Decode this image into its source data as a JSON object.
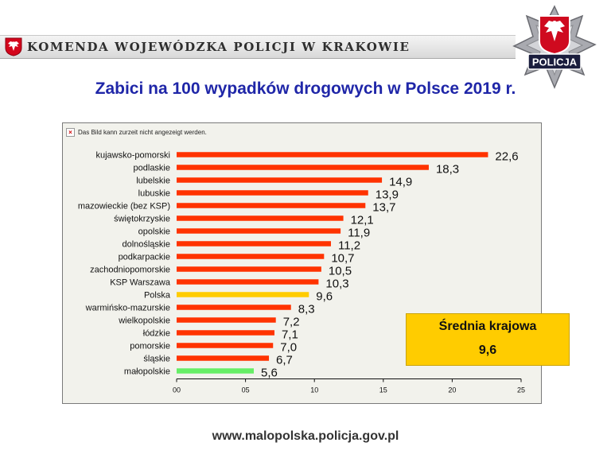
{
  "header": {
    "title": "KOMENDA WOJEWÓDZKA POLICJI W KRAKOWIE",
    "badge_text": "POLICJA"
  },
  "slide_title": "Zabici na 100 wypadków drogowych w Polsce 2019 r.",
  "broken_image_text": "Das Bild kann zurzeit nicht angezeigt werden.",
  "chart_data": {
    "type": "bar",
    "orientation": "horizontal",
    "categories": [
      "kujawsko-pomorski",
      "podlaskie",
      "lubelskie",
      "lubuskie",
      "mazowieckie (bez KSP)",
      "świętokrzyskie",
      "opolskie",
      "dolnośląskie",
      "podkarpackie",
      "zachodniopomorskie",
      "KSP Warszawa",
      "Polska",
      "warmińsko-mazurskie",
      "wielkopolskie",
      "łódzkie",
      "pomorskie",
      "śląskie",
      "małopolskie"
    ],
    "values": [
      22.6,
      18.3,
      14.9,
      13.9,
      13.7,
      12.1,
      11.9,
      11.2,
      10.7,
      10.5,
      10.3,
      9.6,
      8.3,
      7.2,
      7.1,
      7.0,
      6.7,
      5.6
    ],
    "value_labels": [
      "22,6",
      "18,3",
      "14,9",
      "13,9",
      "13,7",
      "12,1",
      "11,9",
      "11,2",
      "10,7",
      "10,5",
      "10,3",
      "9,6",
      "8,3",
      "7,2",
      "7,1",
      "7,0",
      "6,7",
      "5,6"
    ],
    "bar_colors": [
      "#ff3300",
      "#ff3300",
      "#ff3300",
      "#ff3300",
      "#ff3300",
      "#ff3300",
      "#ff3300",
      "#ff3300",
      "#ff3300",
      "#ff3300",
      "#ff3300",
      "#ffcc00",
      "#ff3300",
      "#ff3300",
      "#ff3300",
      "#ff3300",
      "#ff3300",
      "#66ee66"
    ],
    "xlim": [
      0,
      25
    ],
    "x_ticks": [
      0,
      5,
      10,
      15,
      20,
      25
    ],
    "x_tick_labels": [
      "00",
      "05",
      "10",
      "15",
      "20",
      "25"
    ],
    "title": "",
    "xlabel": "",
    "ylabel": "",
    "grid": false,
    "legend": "none"
  },
  "average": {
    "label": "Średnia krajowa",
    "value": "9,6"
  },
  "website": "www.malopolska.policja.gov.pl",
  "colors": {
    "title_blue": "#1f26a8",
    "bar_default": "#ff3300",
    "bar_highlight": "#ffcc00",
    "bar_best": "#66ee66",
    "chart_bg": "#f2f2ec"
  }
}
